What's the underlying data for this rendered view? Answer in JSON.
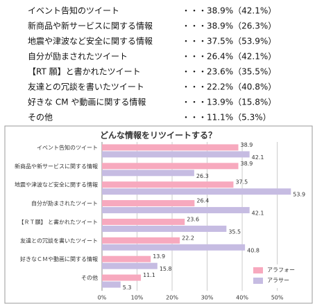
{
  "list": [
    {
      "label": "イベント告知のツイート",
      "value": "・・・38.9%（42.1%）"
    },
    {
      "label": "新商品や新サービスに関する情報",
      "value": "・・・38.9%（26.3%）"
    },
    {
      "label": "地震や津波など安全に関する情報",
      "value": "・・・37.5%（53.9%）"
    },
    {
      "label": "自分が励まされたツイート",
      "value": "・・・26.4%（42.1%）"
    },
    {
      "label": "【RT 願】と書かれたツイート",
      "value": "・・・23.6%（35.5%）"
    },
    {
      "label": "友達との冗談を書いたツイート",
      "value": "・・・22.2%（40.8%）"
    },
    {
      "label": "好きな CM や動画に関する情報",
      "value": "・・・13.9%（15.8%）"
    },
    {
      "label": "その他",
      "value": "・・・11.1%（5.3%）"
    }
  ],
  "chart_data": {
    "type": "bar",
    "orientation": "horizontal",
    "title": "どんな情報をリツイートする？",
    "categories": [
      "イベント告知のツイート",
      "新商品や新サービスに関する情報",
      "地震や津波など安全に関する情報",
      "自分が励まされたツイート",
      "【ＲＴ願】 と書かれたツイート",
      "友達との冗談を書いたツイート",
      "好きなＣＭや動画に関する情報",
      "その他"
    ],
    "series": [
      {
        "name": "アラフォー",
        "color": "#f7a9be",
        "values": [
          38.9,
          38.9,
          37.5,
          26.4,
          23.6,
          22.2,
          13.9,
          11.1
        ]
      },
      {
        "name": "アラサー",
        "color": "#c6bce2",
        "values": [
          42.1,
          26.3,
          53.9,
          42.1,
          35.5,
          40.8,
          15.8,
          5.3
        ]
      }
    ],
    "xlim": [
      0,
      58
    ],
    "xticks": [
      {
        "value": 0,
        "label": "0%"
      },
      {
        "value": 10,
        "label": "10%"
      },
      {
        "value": 20,
        "label": "20%"
      },
      {
        "value": 30,
        "label": "30%"
      },
      {
        "value": 40,
        "label": "40%"
      },
      {
        "value": 50,
        "label": "50%"
      }
    ],
    "grid": true,
    "legend": "lower right"
  }
}
